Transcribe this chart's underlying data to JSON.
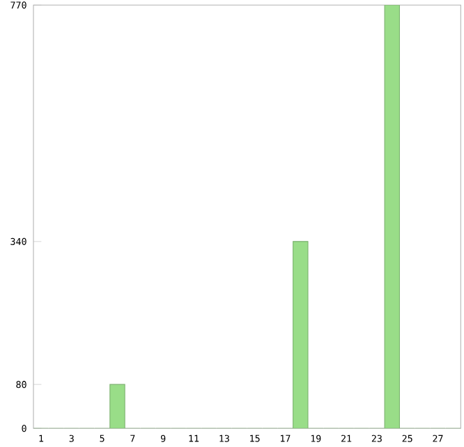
{
  "chart_data": {
    "type": "bar",
    "categories": [
      "1",
      null,
      "3",
      null,
      "5",
      null,
      "7",
      null,
      "9",
      null,
      "11",
      null,
      "13",
      null,
      "15",
      null,
      "17",
      null,
      "19",
      null,
      "21",
      null,
      "23",
      null,
      "25",
      null,
      "27",
      null
    ],
    "values": [
      0,
      0,
      0,
      0,
      0,
      80,
      0,
      0,
      0,
      0,
      0,
      0,
      0,
      0,
      0,
      0,
      0,
      340,
      0,
      0,
      0,
      0,
      0,
      770,
      0,
      0,
      0,
      0
    ],
    "color": "#99dd88",
    "ylim": [
      0,
      770
    ],
    "yticks": [
      0,
      80,
      340,
      770
    ]
  }
}
